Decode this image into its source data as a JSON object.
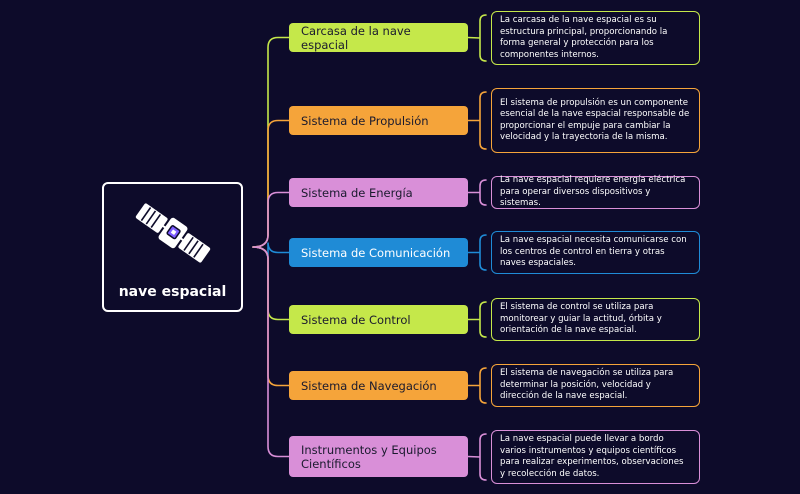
{
  "root": {
    "label": "nave espacial",
    "icon": "satellite-icon"
  },
  "colors": {
    "background": "#0d0b2a",
    "green": "#c5e84a",
    "orange": "#f5a43a",
    "purple": "#d98fd8",
    "blue": "#1f8bd6",
    "root_border": "#ffffff"
  },
  "topics": [
    {
      "label": "Carcasa de la nave espacial",
      "color": "green",
      "description": "La carcasa de la nave espacial es su estructura principal, proporcionando la forma general y protección para los componentes internos."
    },
    {
      "label": "Sistema de Propulsión",
      "color": "orange",
      "description": "El sistema de propulsión es un componente esencial de la nave espacial responsable de proporcionar el empuje para cambiar la velocidad y la trayectoria de la misma."
    },
    {
      "label": "Sistema de Energía",
      "color": "purple",
      "description": "La nave espacial requiere energía eléctrica para operar diversos dispositivos y sistemas."
    },
    {
      "label": "Sistema de Comunicación",
      "color": "blue",
      "description": "La nave espacial necesita comunicarse con los centros de control en tierra y otras naves espaciales."
    },
    {
      "label": "Sistema de Control",
      "color": "green",
      "description": "El sistema de control se utiliza para monitorear y guiar la actitud, órbita y orientación de la nave espacial."
    },
    {
      "label": "Sistema de Navegación",
      "color": "orange",
      "description": "El sistema de navegación se utiliza para determinar la posición, velocidad y dirección de la nave espacial."
    },
    {
      "label": "Instrumentos y Equipos Científicos",
      "color": "purple",
      "description": "La nave espacial puede llevar a bordo varios instrumentos y equipos científicos para realizar experimentos, observaciones y recolección de datos."
    }
  ]
}
